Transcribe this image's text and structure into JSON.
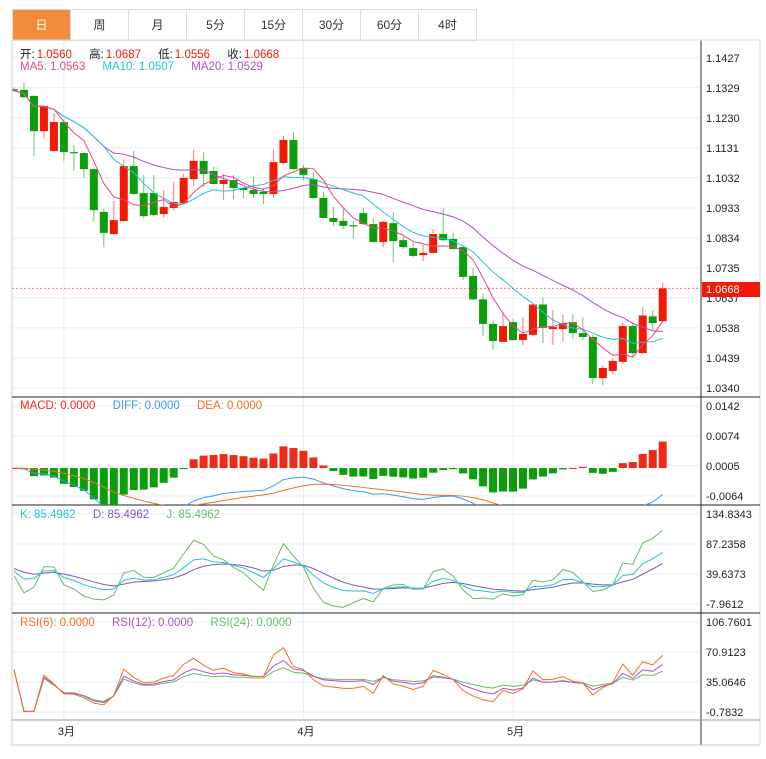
{
  "tabs": [
    {
      "label": "日",
      "active": true
    },
    {
      "label": "周"
    },
    {
      "label": "月"
    },
    {
      "label": "5分"
    },
    {
      "label": "15分"
    },
    {
      "label": "30分"
    },
    {
      "label": "60分"
    },
    {
      "label": "4时"
    }
  ],
  "ohlc_legend": {
    "open_label": "开:",
    "open": "1.0560",
    "high_label": "高:",
    "high": "1.0687",
    "low_label": "低:",
    "low": "1.0556",
    "close_label": "收:",
    "close": "1.0668"
  },
  "ma_legend": {
    "ma5": "MA5: 1.0563",
    "ma10": "MA10: 1.0507",
    "ma20": "MA20: 1.0529"
  },
  "macd_legend": {
    "macd": "MACD: 0.0000",
    "diff": "DIFF: 0.0000",
    "dea": "DEA: 0.0000"
  },
  "kdj_legend": {
    "k": "K: 85.4962",
    "d": "D: 85.4962",
    "j": "J: 85.4962"
  },
  "rsi_legend": {
    "rsi6": "RSI(6): 0.0000",
    "rsi12": "RSI(12): 0.0000",
    "rsi24": "RSI(24): 0.0000"
  },
  "colors": {
    "up": "#f21a05",
    "down": "#0a9e0a",
    "up_wick": "#f77a6e",
    "down_wick": "#6cc46c",
    "ma5": "#e8487e",
    "ma10": "#29c0d8",
    "ma20": "#b04fc8",
    "macd": "#f02a18",
    "diff": "#3a9bf0",
    "dea": "#f07020",
    "k": "#29c0d8",
    "d": "#8054c8",
    "j": "#66bb66",
    "rsi6": "#f07020",
    "rsi12": "#b04fc8",
    "rsi24": "#66bb66",
    "tab_active": "#f28c3c",
    "last_price": "#f21a05"
  },
  "chart_data": {
    "type": "candlestick",
    "last_price": 1.0668,
    "last_price_label": "1.0668",
    "price_ticks": [
      1.1427,
      1.1329,
      1.123,
      1.1131,
      1.1032,
      1.0933,
      1.0834,
      1.0735,
      1.0637,
      1.0538,
      1.0439,
      1.034
    ],
    "price_tick_labels": [
      "1.1427",
      "1.1329",
      "1.1230",
      "1.1131",
      "1.1032",
      "1.0933",
      "1.0834",
      "1.0735",
      "1.0637",
      "1.0538",
      "1.0439",
      "1.0340"
    ],
    "macd_ticks": [
      0.0142,
      0.0074,
      0.0005,
      -0.0064
    ],
    "macd_tick_labels": [
      "0.0142",
      "0.0074",
      "0.0005",
      "-0.0064"
    ],
    "kdj_ticks": [
      134.8343,
      87.2358,
      39.6373,
      -7.9612
    ],
    "kdj_tick_labels": [
      "134.8343",
      "87.2358",
      "39.6373",
      "-7.9612"
    ],
    "rsi_ticks": [
      106.7601,
      70.9123,
      35.0646,
      -0.7832
    ],
    "rsi_tick_labels": [
      "106.7601",
      "70.9123",
      "35.0646",
      "-0.7832"
    ],
    "x_labels": [
      {
        "label": "3月",
        "index": 5
      },
      {
        "label": "4月",
        "index": 29
      },
      {
        "label": "5月",
        "index": 50
      }
    ],
    "candles_fields": [
      "open",
      "high",
      "low",
      "close"
    ],
    "candles": [
      [
        1.1324,
        1.133,
        1.1315,
        1.132
      ],
      [
        1.1322,
        1.1345,
        1.1295,
        1.1298
      ],
      [
        1.1302,
        1.1305,
        1.1104,
        1.1186
      ],
      [
        1.1186,
        1.1272,
        1.1163,
        1.1269
      ],
      [
        1.1121,
        1.1246,
        1.1118,
        1.1216
      ],
      [
        1.1216,
        1.1225,
        1.1088,
        1.1117
      ],
      [
        1.1117,
        1.114,
        1.1055,
        1.1114
      ],
      [
        1.1114,
        1.1117,
        1.1032,
        1.1061
      ],
      [
        1.1061,
        1.1065,
        1.0887,
        1.0926
      ],
      [
        1.092,
        1.093,
        1.0804,
        1.0851
      ],
      [
        1.0847,
        1.0956,
        1.0845,
        1.0893
      ],
      [
        1.089,
        1.1094,
        1.0885,
        1.1071
      ],
      [
        1.1071,
        1.1121,
        1.0975,
        1.0979
      ],
      [
        1.0982,
        1.1042,
        1.09,
        1.0906
      ],
      [
        1.0982,
        1.1042,
        1.0905,
        1.091
      ],
      [
        1.0913,
        1.0992,
        1.09,
        1.0936
      ],
      [
        1.0933,
        1.1018,
        1.0925,
        1.0953
      ],
      [
        1.0949,
        1.1045,
        1.0945,
        1.1032
      ],
      [
        1.1028,
        1.1125,
        1.1005,
        1.1088
      ],
      [
        1.1088,
        1.1117,
        1.1002,
        1.1045
      ],
      [
        1.1055,
        1.1068,
        1.101,
        1.1012
      ],
      [
        1.1012,
        1.1045,
        1.096,
        1.1025
      ],
      [
        1.1025,
        1.1042,
        1.0962,
        1.0999
      ],
      [
        1.0999,
        1.1002,
        1.0966,
        1.0992
      ],
      [
        1.0992,
        1.1036,
        1.0966,
        1.0979
      ],
      [
        1.0986,
        1.0999,
        1.0946,
        1.0979
      ],
      [
        1.0979,
        1.1125,
        1.0966,
        1.1084
      ],
      [
        1.1081,
        1.117,
        1.1078,
        1.1157
      ],
      [
        1.1157,
        1.1183,
        1.1058,
        1.1061
      ],
      [
        1.1065,
        1.1075,
        1.1025,
        1.1042
      ],
      [
        1.1028,
        1.1051,
        1.0962,
        1.0966
      ],
      [
        1.0966,
        1.0986,
        1.0898,
        1.09
      ],
      [
        1.09,
        1.0936,
        1.0874,
        1.0887
      ],
      [
        1.089,
        1.0933,
        1.0864,
        1.0874
      ],
      [
        1.0876,
        1.089,
        1.0834,
        1.0874
      ],
      [
        1.0916,
        1.0933,
        1.0877,
        1.088
      ],
      [
        1.088,
        1.09,
        1.0818,
        1.0821
      ],
      [
        1.0821,
        1.089,
        1.0804,
        1.0887
      ],
      [
        1.0883,
        1.092,
        1.0755,
        1.0824
      ],
      [
        1.0827,
        1.084,
        1.0798,
        1.0804
      ],
      [
        1.0801,
        1.0817,
        1.0772,
        1.0775
      ],
      [
        1.0778,
        1.0811,
        1.0758,
        1.0785
      ],
      [
        1.0785,
        1.0864,
        1.0782,
        1.0847
      ],
      [
        1.0847,
        1.0933,
        1.0824,
        1.0827
      ],
      [
        1.0831,
        1.0851,
        1.0795,
        1.0798
      ],
      [
        1.0804,
        1.0808,
        1.0696,
        1.0706
      ],
      [
        1.0709,
        1.0735,
        1.063,
        1.0632
      ],
      [
        1.0632,
        1.0651,
        1.0511,
        1.0551
      ],
      [
        1.0551,
        1.0561,
        1.0468,
        1.0495
      ],
      [
        1.0492,
        1.059,
        1.049,
        1.0544
      ],
      [
        1.0557,
        1.0567,
        1.0495,
        1.0498
      ],
      [
        1.0498,
        1.0573,
        1.0482,
        1.0518
      ],
      [
        1.0515,
        1.0621,
        1.0512,
        1.0615
      ],
      [
        1.0615,
        1.0638,
        1.0488,
        1.0538
      ],
      [
        1.0534,
        1.0596,
        1.0482,
        1.0541
      ],
      [
        1.0534,
        1.058,
        1.0492,
        1.0554
      ],
      [
        1.0557,
        1.0583,
        1.0501,
        1.0521
      ],
      [
        1.0521,
        1.0573,
        1.0498,
        1.0508
      ],
      [
        1.0508,
        1.0515,
        1.0353,
        1.0373
      ],
      [
        1.0373,
        1.0416,
        1.035,
        1.0406
      ],
      [
        1.0396,
        1.0439,
        1.0386,
        1.0429
      ],
      [
        1.0426,
        1.0554,
        1.042,
        1.0544
      ],
      [
        1.0544,
        1.0557,
        1.0445,
        1.0455
      ],
      [
        1.0455,
        1.0606,
        1.0452,
        1.0579
      ],
      [
        1.0576,
        1.0596,
        1.0531,
        1.0554
      ],
      [
        1.056,
        1.0687,
        1.0556,
        1.0668
      ]
    ]
  }
}
